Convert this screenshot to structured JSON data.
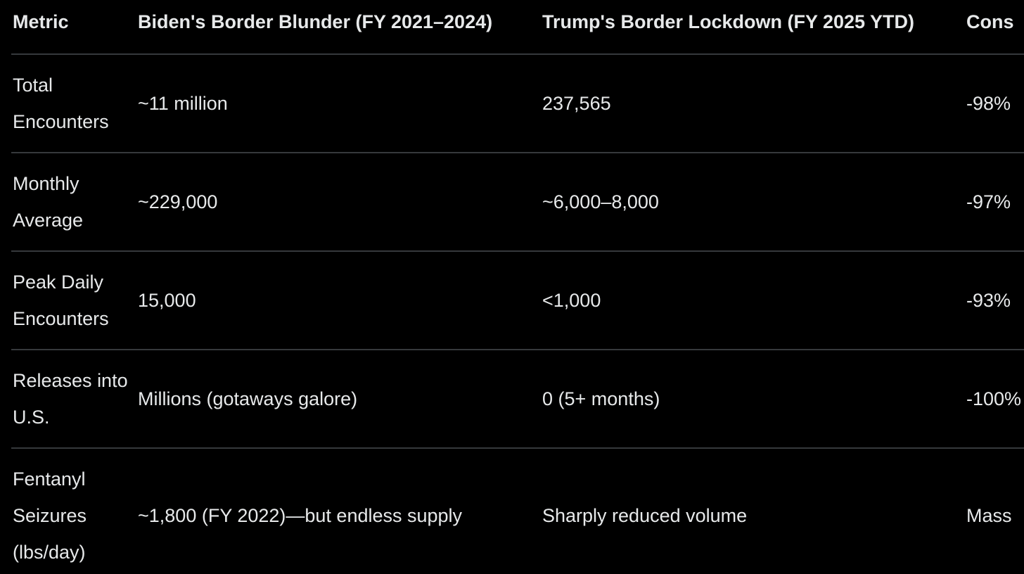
{
  "table": {
    "columns": [
      "Metric",
      "Biden's Border Blunder (FY 2021–2024)",
      "Trump's Border Lockdown (FY 2025 YTD)",
      "Cons"
    ],
    "rows": [
      [
        "Total Encounters",
        "~11 million",
        "237,565",
        "-98%"
      ],
      [
        "Monthly Average",
        "~229,000",
        "~6,000–8,000",
        "-97%"
      ],
      [
        "Peak Daily Encounters",
        "15,000",
        "<1,000",
        "-93%"
      ],
      [
        "Releases into U.S.",
        "Millions (gotaways galore)",
        "0 (5+ months)",
        "-100%"
      ],
      [
        "Fentanyl Seizures (lbs/day)",
        "~1,800 (FY 2022)—but endless supply",
        "Sharply reduced volume",
        "Mass"
      ]
    ],
    "clipped_note_visible_fragments": {
      "last_column_header": "Cons",
      "last_row_last_cell": "Mass"
    }
  },
  "colors": {
    "background": "#000000",
    "text": "#e7e9ea",
    "divider": "#36393c"
  }
}
